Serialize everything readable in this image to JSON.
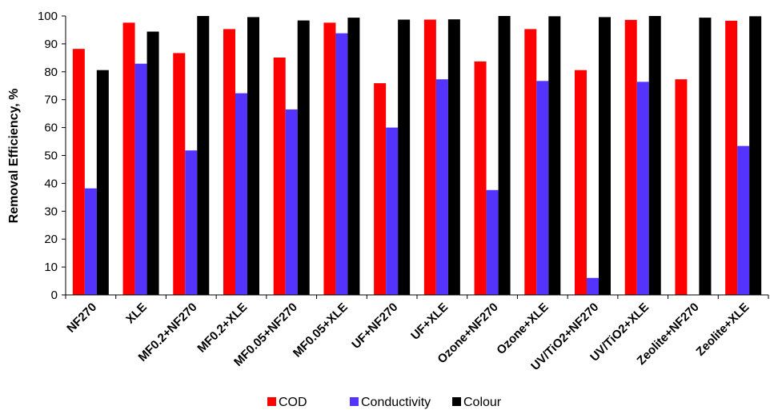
{
  "chart_data": {
    "type": "bar",
    "title": "",
    "xlabel": "",
    "ylabel": "Removal Efficiency, %",
    "ylim": [
      0,
      100
    ],
    "yticks": [
      0,
      10,
      20,
      30,
      40,
      50,
      60,
      70,
      80,
      90,
      100
    ],
    "grid": false,
    "legend_position": "bottom",
    "categories": [
      "NF270",
      "XLE",
      "MF0.2+NF270",
      "MF0.2+XLE",
      "MF0.05+NF270",
      "MF0.05+XLE",
      "UF+NF270",
      "UF+XLE",
      "Ozone+NF270",
      "Ozone+XLE",
      "UV/TiO2+NF270",
      "UV/TiO2+XLE",
      "Zeolite+NF270",
      "Zeolite+XLE"
    ],
    "series": [
      {
        "name": "COD",
        "color": "#ff0000",
        "values": [
          88.2,
          97.6,
          86.7,
          95.3,
          85.1,
          97.6,
          75.9,
          98.7,
          83.7,
          95.3,
          80.6,
          98.6,
          77.3,
          98.3
        ]
      },
      {
        "name": "Conductivity",
        "color": "#5533ff",
        "values": [
          38.2,
          82.9,
          51.8,
          72.3,
          66.5,
          93.8,
          60.0,
          77.3,
          37.6,
          76.7,
          6.1,
          76.4,
          0,
          53.4
        ]
      },
      {
        "name": "Colour",
        "color": "#000000",
        "values": [
          80.6,
          94.4,
          100,
          99.6,
          98.4,
          99.4,
          98.7,
          98.8,
          100,
          99.9,
          99.6,
          100,
          99.4,
          99.9
        ]
      }
    ]
  }
}
